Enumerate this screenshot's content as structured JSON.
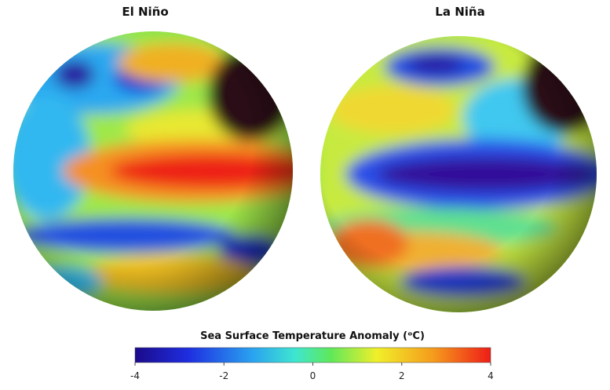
{
  "panels": [
    {
      "title": "El Niño"
    },
    {
      "title": "La Niña"
    }
  ],
  "colorbar": {
    "title": "Sea Surface Temperature Anomaly (ᵒC)",
    "lim": [
      -4,
      4
    ],
    "ticks": [
      -4,
      -2,
      0,
      2,
      4
    ]
  }
}
